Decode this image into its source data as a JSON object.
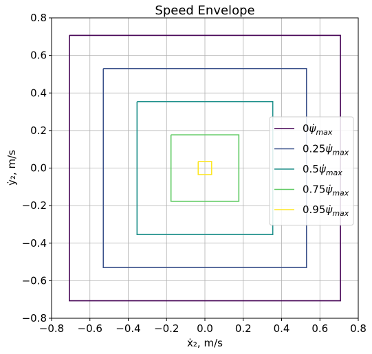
{
  "chart_data": {
    "type": "line",
    "title": "Speed Envelope",
    "xlabel": "ẋ₂, m/s",
    "ylabel": "ẏ₂, m/s",
    "xlim": [
      -0.8,
      0.8
    ],
    "ylim": [
      -0.8,
      0.8
    ],
    "xticks": [
      -0.8,
      -0.6,
      -0.4,
      -0.2,
      0.0,
      0.2,
      0.4,
      0.6,
      0.8
    ],
    "yticks": [
      -0.8,
      -0.6,
      -0.4,
      -0.2,
      0.0,
      0.2,
      0.4,
      0.6,
      0.8
    ],
    "grid": true,
    "legend_position": "right",
    "series": [
      {
        "name_coef": "0",
        "half_width": 0.707,
        "color": "#440154"
      },
      {
        "name_coef": "0.25",
        "half_width": 0.53,
        "color": "#3b528b"
      },
      {
        "name_coef": "0.5",
        "half_width": 0.354,
        "color": "#21918c"
      },
      {
        "name_coef": "0.75",
        "half_width": 0.177,
        "color": "#5ec962"
      },
      {
        "name_coef": "0.95",
        "half_width": 0.035,
        "color": "#fde725"
      }
    ]
  }
}
